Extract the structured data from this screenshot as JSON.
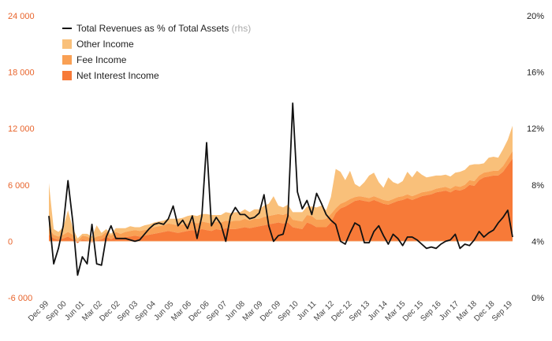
{
  "chart_data": {
    "type": "area",
    "y_left_ticks": [
      "-6 000",
      "0",
      "6 000",
      "12 000",
      "18 000",
      "24 000"
    ],
    "y_left_values": [
      -6000,
      0,
      6000,
      12000,
      18000,
      24000
    ],
    "ylim": [
      -6000,
      24000
    ],
    "y_right_ticks": [
      "0%",
      "4%",
      "8%",
      "12%",
      "16%",
      "20%"
    ],
    "y_right_values": [
      0,
      4,
      8,
      12,
      16,
      20
    ],
    "y2lim": [
      0,
      20
    ],
    "x_tick_labels": [
      "Dec 99",
      "Sep 00",
      "Jun 01",
      "Mar 02",
      "Dec 02",
      "Sep 03",
      "Jun 04",
      "Mar 05",
      "Dec 05",
      "Sep 06",
      "Jun 07",
      "Mar 08",
      "Dec 08",
      "Sep 09",
      "Jun 10",
      "Mar 11",
      "Dec 11",
      "Sep 12",
      "Jun 13",
      "Mar 14",
      "Dec 14",
      "Sep 15",
      "Jun 16",
      "Mar 17",
      "Dec 17",
      "Sep 18",
      "Jun 19"
    ],
    "x_tick_labels_shown": [
      "Dec 99",
      "Sep 00",
      "Jun 01",
      "Mar 02",
      "Dec 02",
      "Sep 03",
      "Sep 04",
      "Jun 05",
      "Mar 06",
      "Dec 06",
      "Sep 07",
      "Jun 08",
      "Mar 09",
      "Dec 09",
      "Sep 10",
      "Jun 11",
      "Mar 12",
      "Dec 12",
      "Sep 13",
      "Jun 14",
      "Mar 15",
      "Dec 15",
      "Sep 16",
      "Jun 17",
      "Mar 18",
      "Dec 18",
      "Sep 19"
    ],
    "legend": {
      "position": "top-left",
      "entries": [
        {
          "name": "Total Revenues as % of Total Assets",
          "note": "(rhs)",
          "color": "#111111",
          "kind": "line"
        },
        {
          "name": "Other Income",
          "color": "#f9c07a",
          "kind": "area"
        },
        {
          "name": "Fee Income",
          "color": "#f9a054",
          "kind": "area"
        },
        {
          "name": "Net Interest Income",
          "color": "#f77a38",
          "kind": "area"
        }
      ]
    },
    "colors": {
      "nii": "#f77a38",
      "fee": "#f9a054",
      "other": "#f9c07a",
      "line": "#111111",
      "zero": "#f5c9a6"
    },
    "series": [
      {
        "name": "Net Interest Income",
        "axis": "left",
        "values": [
          700,
          300,
          150,
          300,
          500,
          200,
          -200,
          200,
          100,
          -100,
          100,
          200,
          500,
          200,
          500,
          300,
          450,
          500,
          600,
          500,
          600,
          700,
          800,
          900,
          1000,
          1100,
          1000,
          900,
          1000,
          1100,
          1200,
          1100,
          1300,
          1200,
          1100,
          1300,
          1200,
          1400,
          1300,
          1300,
          1400,
          1500,
          1400,
          1500,
          1600,
          1700,
          1800,
          1900,
          2000,
          1900,
          2000,
          1500,
          1400,
          1300,
          2000,
          1800,
          1500,
          1500,
          1500,
          2000,
          3000,
          3500,
          3700,
          4000,
          4300,
          4400,
          4300,
          4200,
          4400,
          4200,
          4000,
          3900,
          4100,
          4300,
          4400,
          4600,
          4400,
          4600,
          4800,
          4900,
          5000,
          5200,
          5300,
          5400,
          5200,
          5500,
          5400,
          5600,
          6000,
          5900,
          6500,
          6800,
          6900,
          7000,
          7000,
          7400,
          8100,
          8800
        ]
      },
      {
        "name": "Fee Income",
        "axis": "left",
        "values": [
          700,
          400,
          350,
          400,
          500,
          500,
          200,
          400,
          400,
          300,
          400,
          400,
          500,
          400,
          500,
          500,
          550,
          600,
          600,
          600,
          600,
          600,
          700,
          700,
          700,
          800,
          800,
          800,
          800,
          800,
          900,
          800,
          800,
          800,
          800,
          800,
          800,
          800,
          800,
          900,
          800,
          900,
          800,
          900,
          800,
          900,
          900,
          900,
          900,
          900,
          1000,
          800,
          800,
          800,
          800,
          900,
          800,
          800,
          900,
          900,
          500,
          500,
          500,
          500,
          400,
          400,
          400,
          400,
          400,
          400,
          400,
          400,
          400,
          400,
          400,
          400,
          400,
          400,
          400,
          400,
          400,
          400,
          400,
          400,
          400,
          400,
          400,
          400,
          500,
          500,
          500,
          500,
          500,
          500,
          500,
          600,
          700,
          800
        ]
      },
      {
        "name": "Other Income",
        "axis": "left",
        "values": [
          4800,
          600,
          500,
          800,
          2300,
          700,
          300,
          200,
          300,
          300,
          1200,
          300,
          300,
          200,
          400,
          600,
          400,
          500,
          300,
          400,
          500,
          500,
          500,
          500,
          500,
          500,
          600,
          700,
          700,
          800,
          700,
          800,
          800,
          900,
          900,
          700,
          800,
          900,
          900,
          900,
          900,
          1000,
          900,
          1000,
          1000,
          1200,
          1300,
          2000,
          900,
          800,
          900,
          800,
          900,
          1000,
          900,
          1000,
          1300,
          1500,
          900,
          1800,
          4200,
          3400,
          2300,
          3000,
          1400,
          1000,
          1600,
          2400,
          2500,
          1700,
          1300,
          2500,
          1800,
          1400,
          1600,
          2400,
          2000,
          2500,
          1900,
          1500,
          1500,
          1400,
          1300,
          1300,
          1300,
          1400,
          1600,
          1600,
          1600,
          1800,
          1200,
          1000,
          1500,
          1500,
          1400,
          1800,
          2000,
          2700
        ]
      },
      {
        "name": "Total Revenues as % of Total Assets",
        "axis": "right",
        "values": [
          5.8,
          2.4,
          3.5,
          5.1,
          8.3,
          5.4,
          1.6,
          2.9,
          2.4,
          5.2,
          2.4,
          2.3,
          4.3,
          5.1,
          4.2,
          4.2,
          4.2,
          4.1,
          4.0,
          4.1,
          4.5,
          4.9,
          5.2,
          5.3,
          5.2,
          5.6,
          6.5,
          5.1,
          5.5,
          4.9,
          5.8,
          4.2,
          5.8,
          11.0,
          5.1,
          5.7,
          5.2,
          4.0,
          5.8,
          6.4,
          5.9,
          5.9,
          5.6,
          5.7,
          6.0,
          7.3,
          5.1,
          4.0,
          4.4,
          4.5,
          5.8,
          13.8,
          7.5,
          6.3,
          6.9,
          5.9,
          7.4,
          6.7,
          5.9,
          5.5,
          5.2,
          4.0,
          3.8,
          4.6,
          5.3,
          5.1,
          3.9,
          3.9,
          4.7,
          5.1,
          4.4,
          3.8,
          4.5,
          4.2,
          3.7,
          4.3,
          4.3,
          4.1,
          3.8,
          3.5,
          3.6,
          3.5,
          3.8,
          4.0,
          4.1,
          4.5,
          3.5,
          3.8,
          3.7,
          4.1,
          4.7,
          4.3,
          4.6,
          4.8,
          5.3,
          5.7,
          6.2,
          4.3
        ]
      }
    ]
  }
}
